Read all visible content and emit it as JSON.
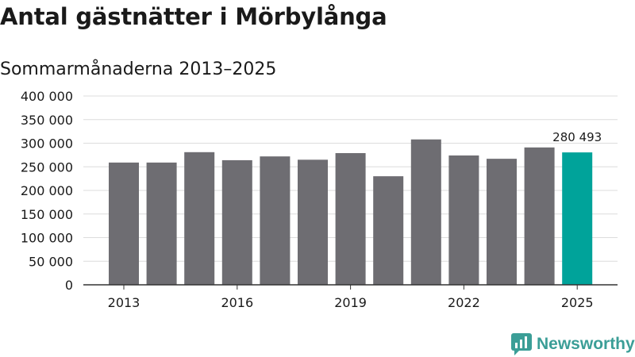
{
  "header": {
    "title": "Antal gästnätter i Mörbylånga",
    "subtitle": "Sommarmånaderna 2013–2025"
  },
  "brand": {
    "name": "Newsworthy",
    "color": "#3b9e97",
    "icon": "newsworthy-logo-icon"
  },
  "colors": {
    "bar": "#6e6d72",
    "highlight": "#00a39a",
    "grid": "#dcdcdc",
    "axis": "#333333"
  },
  "chart_data": {
    "type": "bar",
    "title": "Antal gästnätter i Mörbylånga",
    "subtitle": "Sommarmånaderna 2013–2025",
    "categories": [
      "2013",
      "2014",
      "2015",
      "2016",
      "2017",
      "2018",
      "2019",
      "2020",
      "2021",
      "2022",
      "2023",
      "2024",
      "2025"
    ],
    "values": [
      259000,
      259000,
      281000,
      264000,
      272000,
      265000,
      279000,
      230000,
      308000,
      274000,
      267000,
      291000,
      280493
    ],
    "highlight_index": 12,
    "data_labels": [
      {
        "index": 12,
        "text": "280 493"
      }
    ],
    "x_tick_labels": [
      "2013",
      "2016",
      "2019",
      "2022",
      "2025"
    ],
    "y_tick_labels": [
      "0",
      "50 000",
      "100 000",
      "150 000",
      "200 000",
      "250 000",
      "300 000",
      "350 000",
      "400 000"
    ],
    "y_ticks": [
      0,
      50000,
      100000,
      150000,
      200000,
      250000,
      300000,
      350000,
      400000
    ],
    "ylim": [
      0,
      400000
    ],
    "grid": true,
    "legend": "none"
  }
}
